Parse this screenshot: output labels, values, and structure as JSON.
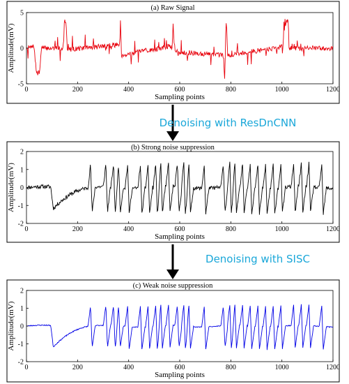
{
  "colors": {
    "raw": "#e8000b",
    "strong": "#000000",
    "weak": "#0000e6",
    "step_text": "#1aa7d9"
  },
  "steps": [
    "Denoising with ResDnCNN",
    "Denoising with SISC"
  ],
  "chart_data": [
    {
      "type": "line",
      "title": "(a) Raw Signal",
      "xlabel": "Sampling points",
      "ylabel": "Amplitude(mV)",
      "xlim": [
        0,
        1200
      ],
      "ylim": [
        -5,
        5
      ],
      "xticks": [
        0,
        200,
        400,
        600,
        800,
        1000,
        1200
      ],
      "yticks": [
        -5,
        0,
        5
      ],
      "grid": false,
      "series_color": "raw",
      "key_points": [
        [
          0,
          0
        ],
        [
          30,
          0.2
        ],
        [
          38,
          -3.2
        ],
        [
          45,
          -3.6
        ],
        [
          52,
          -3.3
        ],
        [
          58,
          0
        ],
        [
          145,
          0
        ],
        [
          148,
          3.8
        ],
        [
          155,
          3.9
        ],
        [
          160,
          -0.2
        ],
        [
          365,
          0.5
        ],
        [
          368,
          3.9
        ],
        [
          372,
          -1
        ],
        [
          570,
          0.3
        ],
        [
          574,
          3.2
        ],
        [
          580,
          -0.5
        ],
        [
          770,
          -1
        ],
        [
          776,
          -4.5
        ],
        [
          782,
          4.9
        ],
        [
          788,
          -1
        ],
        [
          1005,
          0.2
        ],
        [
          1008,
          3.8
        ],
        [
          1025,
          3.7
        ],
        [
          1028,
          0
        ],
        [
          1200,
          0
        ]
      ]
    },
    {
      "type": "line",
      "title": "(b) Strong noise suppression",
      "xlabel": "Sampling points",
      "ylabel": "Amplitude(mV)",
      "xlim": [
        0,
        1200
      ],
      "ylim": [
        -2,
        2
      ],
      "xticks": [
        0,
        200,
        400,
        600,
        800,
        1000,
        1200
      ],
      "yticks": [
        -2,
        -1,
        0,
        1,
        2
      ],
      "grid": false,
      "series_color": "strong",
      "key_points": [
        [
          0,
          0.1
        ],
        [
          100,
          0
        ],
        [
          110,
          -1.3
        ],
        [
          150,
          -0.5
        ],
        [
          250,
          0
        ],
        [
          255,
          1.4
        ],
        [
          260,
          -1
        ],
        [
          365,
          1.3
        ],
        [
          520,
          1.4
        ],
        [
          600,
          1.3
        ],
        [
          715,
          -1.2
        ],
        [
          780,
          1.4
        ],
        [
          940,
          1.4
        ],
        [
          1000,
          1.3
        ],
        [
          1010,
          -1.4
        ],
        [
          1200,
          0.2
        ]
      ]
    },
    {
      "type": "line",
      "title": "(c) Weak noise suppression",
      "xlabel": "Sampling points",
      "ylabel": "Amplitude(mV)",
      "xlim": [
        0,
        1200
      ],
      "ylim": [
        -2,
        2
      ],
      "xticks": [
        0,
        200,
        400,
        600,
        800,
        1000,
        1200
      ],
      "yticks": [
        -2,
        -1,
        0,
        1,
        2
      ],
      "grid": false,
      "series_color": "weak",
      "key_points": [
        [
          0,
          0.15
        ],
        [
          95,
          0
        ],
        [
          105,
          -1.2
        ],
        [
          150,
          -0.6
        ],
        [
          250,
          0
        ],
        [
          255,
          1.1
        ],
        [
          262,
          -0.9
        ],
        [
          365,
          1.2
        ],
        [
          520,
          1.2
        ],
        [
          600,
          1.2
        ],
        [
          715,
          -1.1
        ],
        [
          780,
          1.2
        ],
        [
          940,
          1.2
        ],
        [
          1000,
          1.1
        ],
        [
          1010,
          -1.3
        ],
        [
          1200,
          0.15
        ]
      ]
    }
  ]
}
